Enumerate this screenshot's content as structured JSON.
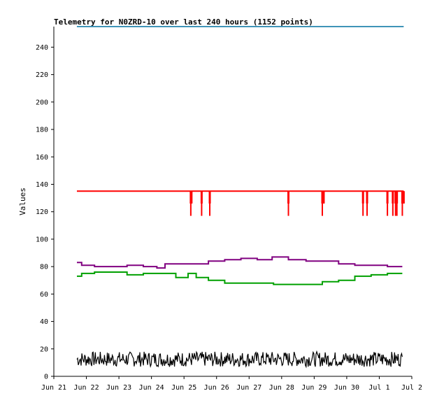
{
  "chart_data": {
    "type": "line",
    "title": "Telemetry for N0ZRD-10 over last 240 hours (1152 points)",
    "xlabel": "",
    "ylabel": "Values",
    "xlim": [
      "Jun 21",
      "Jul 2"
    ],
    "ylim": [
      0,
      255
    ],
    "x_ticks": [
      "Jun 21",
      "Jun 22",
      "Jun 23",
      "Jun 24",
      "Jun 25",
      "Jun 26",
      "Jun 27",
      "Jun 28",
      "Jun 29",
      "Jun 30",
      "Jul 1",
      "Jul 2"
    ],
    "y_ticks": [
      0,
      20,
      40,
      60,
      80,
      100,
      120,
      140,
      160,
      180,
      200,
      220,
      240
    ],
    "grid": false,
    "legend": "none",
    "series": [
      {
        "color": "#ff0000",
        "x": [
          "Jun 21 17:00",
          "Jun 25 05:00",
          "Jun 25 05:30",
          "Jun 25 13:00",
          "Jun 25 19:00",
          "Jun 28 05:00",
          "Jun 29 06:00",
          "Jun 29 07:00",
          "Jun 30 12:00",
          "Jun 30 15:00",
          "Jul 1 06:00",
          "Jul 1 10:00",
          "Jul 1 12:00",
          "Jul 1 13:00",
          "Jul 1 17:00",
          "Jul 1 18:00"
        ],
        "values": [
          135,
          117,
          126,
          117,
          117,
          117,
          117,
          126,
          117,
          117,
          117,
          117,
          117,
          117,
          117,
          126
        ]
      },
      {
        "color": "#800080",
        "x": [
          "Jun 21 17:00",
          "Jun 22 00:00",
          "Jun 22 12:00",
          "Jun 23 00:00",
          "Jun 23 12:00",
          "Jun 24 00:00",
          "Jun 24 08:00",
          "Jun 24 12:00",
          "Jun 25 00:00",
          "Jun 25 12:00",
          "Jun 26 00:00",
          "Jun 26 12:00",
          "Jun 27 00:00",
          "Jun 27 12:00",
          "Jun 27 22:00",
          "Jun 28 12:00",
          "Jun 29 00:00",
          "Jun 29 12:00",
          "Jun 30 00:00",
          "Jun 30 12:00",
          "Jul 1 00:00",
          "Jul 1 12:00",
          "Jul 1 17:00"
        ],
        "values": [
          83,
          81,
          80,
          80,
          81,
          80,
          79,
          82,
          82,
          82,
          84,
          85,
          86,
          85,
          87,
          85,
          84,
          84,
          82,
          81,
          81,
          80,
          80
        ]
      },
      {
        "color": "#00a000",
        "x": [
          "Jun 21 17:00",
          "Jun 22 00:00",
          "Jun 22 12:00",
          "Jun 23 00:00",
          "Jun 23 12:00",
          "Jun 24 00:00",
          "Jun 24 12:00",
          "Jun 25 00:00",
          "Jun 25 06:00",
          "Jun 25 12:00",
          "Jun 26 00:00",
          "Jun 26 12:00",
          "Jun 27 00:00",
          "Jun 27 12:00",
          "Jun 28 00:00",
          "Jun 28 12:00",
          "Jun 29 00:00",
          "Jun 29 12:00",
          "Jun 30 00:00",
          "Jun 30 12:00",
          "Jul 1 00:00",
          "Jul 1 12:00",
          "Jul 1 17:00"
        ],
        "values": [
          73,
          75,
          76,
          76,
          74,
          75,
          75,
          72,
          75,
          72,
          70,
          68,
          68,
          68,
          67,
          67,
          67,
          69,
          70,
          73,
          74,
          75,
          75
        ]
      },
      {
        "color": "#000000",
        "x": [
          "Jun 21 17:00",
          "Jul 1 17:00"
        ],
        "values": [
          7,
          18
        ]
      }
    ],
    "top_reference_line": {
      "color": "#0070a0",
      "value": 255
    }
  }
}
